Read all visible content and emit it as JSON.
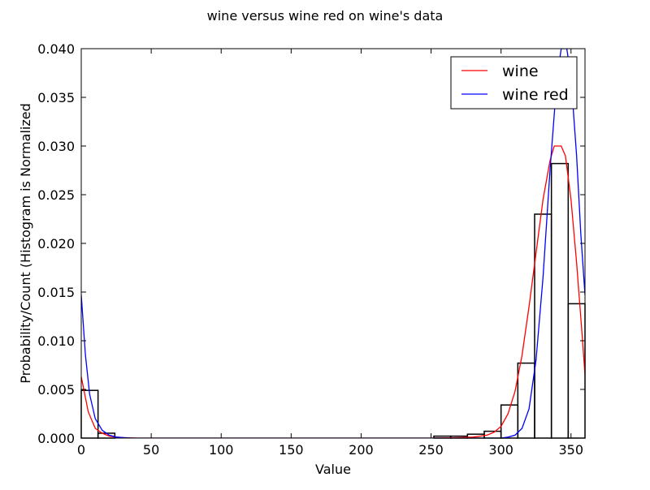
{
  "chart_data": {
    "type": "histogram-with-density-lines",
    "title": "wine versus wine red on wine's data",
    "xlabel": "Value",
    "ylabel": "Probability/Count (Histogram is Normalized",
    "xlim": [
      0,
      360
    ],
    "ylim": [
      0,
      0.04
    ],
    "xticks": [
      0,
      50,
      100,
      150,
      200,
      250,
      300,
      350
    ],
    "yticks": [
      0.0,
      0.005,
      0.01,
      0.015,
      0.02,
      0.025,
      0.03,
      0.035,
      0.04
    ],
    "grid": false,
    "legend": {
      "placement": "top-right",
      "entries": [
        "wine",
        "wine red"
      ]
    },
    "histogram": {
      "bin_width": 12,
      "bins": [
        {
          "x0": 0,
          "value": 0.0049
        },
        {
          "x0": 12,
          "value": 0.0005
        },
        {
          "x0": 252,
          "value": 0.0002
        },
        {
          "x0": 264,
          "value": 0.0002
        },
        {
          "x0": 276,
          "value": 0.0004
        },
        {
          "x0": 288,
          "value": 0.0007
        },
        {
          "x0": 300,
          "value": 0.0034
        },
        {
          "x0": 312,
          "value": 0.0077
        },
        {
          "x0": 324,
          "value": 0.023
        },
        {
          "x0": 336,
          "value": 0.0282
        },
        {
          "x0": 348,
          "value": 0.0138
        }
      ]
    },
    "series": [
      {
        "name": "wine",
        "color": "#ff0000",
        "points": [
          [
            0,
            0.0063
          ],
          [
            5,
            0.0027
          ],
          [
            10,
            0.001
          ],
          [
            15,
            0.0005
          ],
          [
            20,
            0.0002
          ],
          [
            25,
            0.0001
          ],
          [
            30,
            5e-05
          ],
          [
            40,
            0
          ],
          [
            100,
            0
          ],
          [
            200,
            0
          ],
          [
            250,
            0
          ],
          [
            270,
            5e-05
          ],
          [
            280,
            0.0001
          ],
          [
            290,
            0.0003
          ],
          [
            295,
            0.0006
          ],
          [
            300,
            0.0012
          ],
          [
            305,
            0.0025
          ],
          [
            310,
            0.0048
          ],
          [
            315,
            0.0085
          ],
          [
            320,
            0.0135
          ],
          [
            325,
            0.019
          ],
          [
            330,
            0.0245
          ],
          [
            335,
            0.0285
          ],
          [
            338,
            0.03
          ],
          [
            343,
            0.03
          ],
          [
            346,
            0.029
          ],
          [
            350,
            0.0245
          ],
          [
            354,
            0.018
          ],
          [
            358,
            0.0105
          ],
          [
            360,
            0.0065
          ]
        ]
      },
      {
        "name": "wine red",
        "color": "#0000ff",
        "points": [
          [
            0,
            0.0147
          ],
          [
            3,
            0.0085
          ],
          [
            6,
            0.0045
          ],
          [
            10,
            0.002
          ],
          [
            15,
            0.0008
          ],
          [
            20,
            0.0003
          ],
          [
            25,
            0.0001
          ],
          [
            35,
            0
          ],
          [
            100,
            0
          ],
          [
            200,
            0
          ],
          [
            250,
            0
          ],
          [
            300,
            0
          ],
          [
            305,
            0.0001
          ],
          [
            310,
            0.0003
          ],
          [
            315,
            0.001
          ],
          [
            320,
            0.003
          ],
          [
            325,
            0.008
          ],
          [
            330,
            0.0165
          ],
          [
            335,
            0.0275
          ],
          [
            340,
            0.037
          ],
          [
            343,
            0.04
          ],
          [
            347,
            0.04
          ],
          [
            350,
            0.037
          ],
          [
            354,
            0.029
          ],
          [
            357,
            0.021
          ],
          [
            360,
            0.0147
          ]
        ]
      }
    ]
  }
}
